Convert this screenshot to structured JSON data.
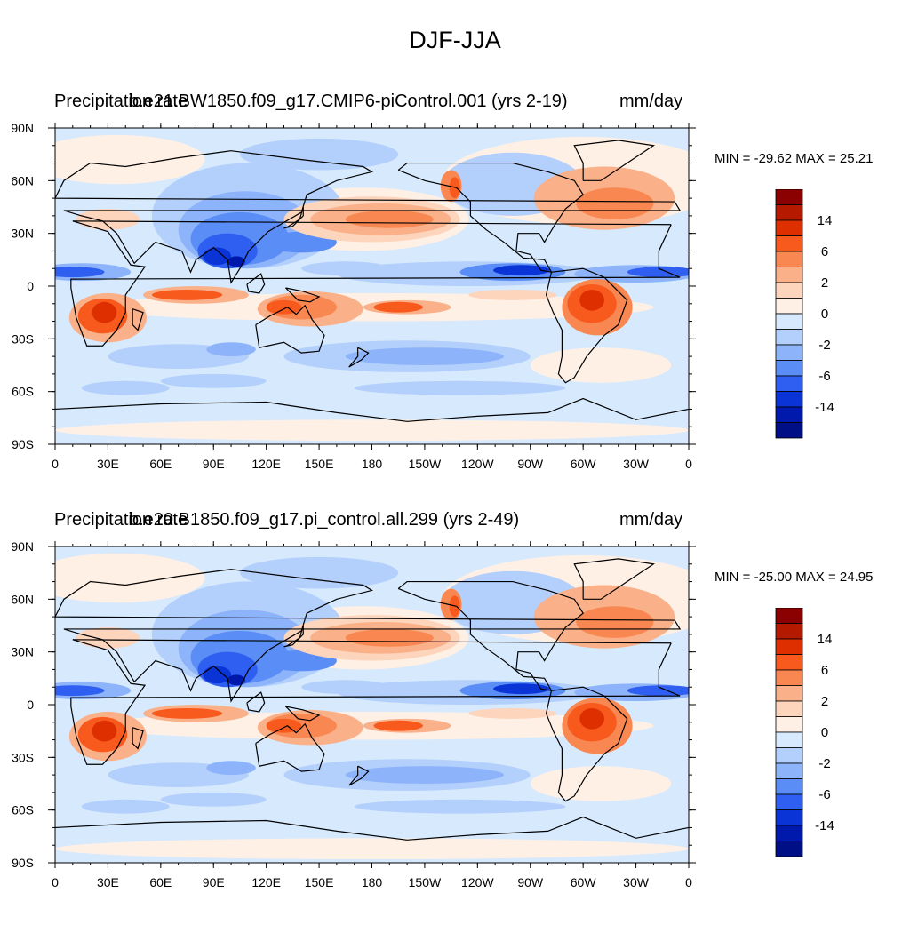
{
  "title": "DJF-JJA",
  "legend_colors": [
    "#8b0000",
    "#b51a00",
    "#de2f00",
    "#f85a1e",
    "#f88751",
    "#fab18a",
    "#fdd4bc",
    "#fff0e6",
    "#d6e9fd",
    "#b3cffc",
    "#8db4fa",
    "#5a8df5",
    "#2f5ff0",
    "#0a34d6",
    "#0019ad",
    "#000f85"
  ],
  "legend_labels": [
    "14",
    "6",
    "2",
    "0",
    "-2",
    "-6",
    "-14"
  ],
  "x_ticks": [
    "0",
    "30E",
    "60E",
    "90E",
    "120E",
    "150E",
    "180",
    "150W",
    "120W",
    "90W",
    "60W",
    "30W",
    "0"
  ],
  "y_ticks": [
    "90N",
    "60N",
    "30N",
    "0",
    "30S",
    "60S",
    "90S"
  ],
  "panels": [
    {
      "left_label": "Precipitation rate",
      "center_label": "b.e21.BW1850.f09_g17.CMIP6-piControl.001 (yrs 2-19)",
      "right_label": "mm/day",
      "stats": "MIN = -29.62 MAX =  25.21"
    },
    {
      "left_label": "Precipitation rate",
      "center_label": "b.e20.B1850.f09_g17.pi_control.all.299 (yrs 2-49)",
      "right_label": "mm/day",
      "stats": "MIN = -25.00 MAX =  24.95"
    }
  ],
  "chart_data": {
    "type": "heatmap",
    "title": "DJF-JJA",
    "units": "mm/day",
    "variable": "Precipitation rate",
    "contour_levels": [
      "14",
      "6",
      "2",
      "0",
      "-2",
      "-6",
      "-14"
    ],
    "xlim": [
      "0",
      "0"
    ],
    "ylim": [
      "90S",
      "90N"
    ],
    "maps": [
      {
        "case": "b.e21.BW1850.f09_g17.CMIP6-piControl.001 (yrs 2-19)",
        "min": -29.62,
        "max": 25.21
      },
      {
        "case": "b.e20.B1850.f09_g17.pi_control.all.299 (yrs 2-49)",
        "min": -25.0,
        "max": 24.95
      }
    ]
  }
}
